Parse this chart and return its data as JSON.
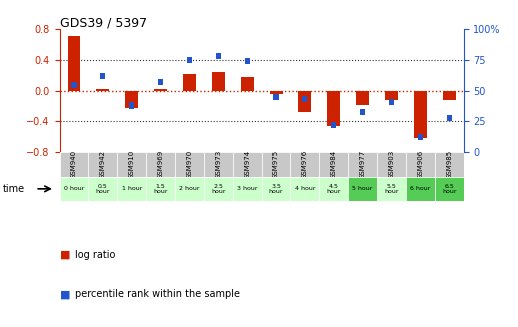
{
  "title": "GDS39 / 5397",
  "samples": [
    "GSM940",
    "GSM942",
    "GSM910",
    "GSM969",
    "GSM970",
    "GSM973",
    "GSM974",
    "GSM975",
    "GSM976",
    "GSM984",
    "GSM977",
    "GSM903",
    "GSM906",
    "GSM985"
  ],
  "time_labels": [
    "0 hour",
    "0.5\nhour",
    "1 hour",
    "1.5\nhour",
    "2 hour",
    "2.5\nhour",
    "3 hour",
    "3.5\nhour",
    "4 hour",
    "4.5\nhour",
    "5 hour",
    "5.5\nhour",
    "6 hour",
    "6.5\nhour"
  ],
  "log_ratio": [
    0.72,
    0.02,
    -0.22,
    0.02,
    0.22,
    0.25,
    0.18,
    -0.04,
    -0.28,
    -0.46,
    -0.18,
    -0.12,
    -0.62,
    -0.12
  ],
  "percentile": [
    55,
    62,
    38,
    57,
    75,
    78,
    74,
    45,
    43,
    22,
    33,
    41,
    12,
    28
  ],
  "ylim_left": [
    -0.8,
    0.8
  ],
  "ylim_right": [
    0,
    100
  ],
  "left_yticks": [
    -0.8,
    -0.4,
    0.0,
    0.4,
    0.8
  ],
  "right_yticks": [
    0,
    25,
    50,
    75,
    100
  ],
  "bar_color_red": "#cc2200",
  "bar_color_blue": "#2255cc",
  "dotted_red": "#cc2200",
  "dotted_black": "#333333",
  "bg_plot": "#ffffff",
  "bg_sample_gray": "#c8c8c8",
  "bg_time_light": "#ccffcc",
  "bg_time_dark": "#55cc55",
  "time_colors": [
    "#ccffcc",
    "#ccffcc",
    "#ccffcc",
    "#ccffcc",
    "#ccffcc",
    "#ccffcc",
    "#ccffcc",
    "#ccffcc",
    "#ccffcc",
    "#ccffcc",
    "#55cc55",
    "#ccffcc",
    "#55cc55",
    "#55cc55"
  ],
  "legend_red": "log ratio",
  "legend_blue": "percentile rank within the sample"
}
